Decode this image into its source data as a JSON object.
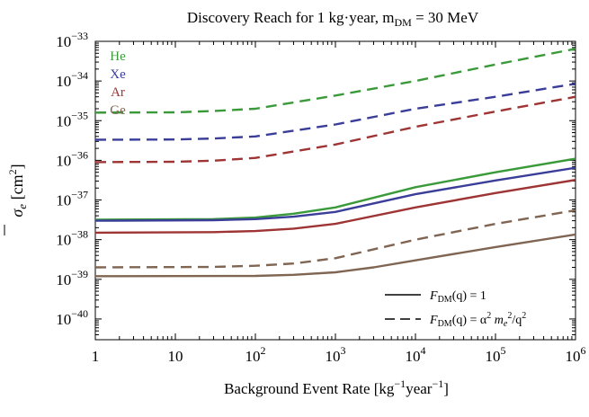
{
  "chart_data": {
    "type": "line",
    "title": "Discovery Reach for 1 kg·year,  m",
    "title_sub": "DM",
    "title_tail": " = 30 MeV",
    "xlabel": "Background Event Rate [kg",
    "xlabel_sup1": "−1",
    "xlabel_mid": "year",
    "xlabel_sup2": "−1",
    "xlabel_end": "]",
    "ylabel": "σ",
    "ylabel_sub": "e",
    "ylabel_unit": " [cm",
    "ylabel_unit_sup": "2",
    "ylabel_unit_end": "]",
    "x_scale": "log",
    "y_scale": "log",
    "xlim": [
      1,
      1000000
    ],
    "ylim": [
      3e-41,
      1e-33
    ],
    "x_ticks": [
      {
        "v": 1,
        "base": "1",
        "exp": ""
      },
      {
        "v": 10,
        "base": "10",
        "exp": ""
      },
      {
        "v": 100,
        "base": "10",
        "exp": "2"
      },
      {
        "v": 1000,
        "base": "10",
        "exp": "3"
      },
      {
        "v": 10000,
        "base": "10",
        "exp": "4"
      },
      {
        "v": 100000,
        "base": "10",
        "exp": "5"
      },
      {
        "v": 1000000,
        "base": "10",
        "exp": "6"
      }
    ],
    "y_ticks": [
      {
        "v": 1e-40,
        "base": "10",
        "exp": "−40"
      },
      {
        "v": 1e-39,
        "base": "10",
        "exp": "−39"
      },
      {
        "v": 1e-38,
        "base": "10",
        "exp": "−38"
      },
      {
        "v": 1e-37,
        "base": "10",
        "exp": "−37"
      },
      {
        "v": 1e-36,
        "base": "10",
        "exp": "−36"
      },
      {
        "v": 1e-35,
        "base": "10",
        "exp": "−35"
      },
      {
        "v": 1e-34,
        "base": "10",
        "exp": "−34"
      },
      {
        "v": 1e-33,
        "base": "10",
        "exp": "−33"
      }
    ],
    "grid": false,
    "legend_placement": "top-left",
    "legend": [
      {
        "name": "He",
        "color": "#3a9a3a"
      },
      {
        "name": "Xe",
        "color": "#3a3e99"
      },
      {
        "name": "Ar",
        "color": "#9e3434"
      },
      {
        "name": "Ge",
        "color": "#7f6552"
      }
    ],
    "style_legend": {
      "placement": "bottom-right",
      "solid": {
        "lhs": "F",
        "lhs_sub": "DM",
        "rest": "(q) = 1"
      },
      "dashed": {
        "lhs": "F",
        "lhs_sub": "DM",
        "rest": "(q) = α",
        "sup1": "2",
        "mid": " m",
        "sub2": "e",
        "sup2": "2",
        "tail": "/q",
        "sup3": "2"
      }
    },
    "series": [
      {
        "element": "He",
        "form_factor": "FDM=1",
        "style": "solid",
        "color": "#3a9a3a",
        "points": [
          [
            1,
            3.2e-38
          ],
          [
            30,
            3.3e-38
          ],
          [
            100,
            3.6e-38
          ],
          [
            300,
            4.5e-38
          ],
          [
            1000,
            6.5e-38
          ],
          [
            10000,
            2.1e-37
          ],
          [
            100000,
            5e-37
          ],
          [
            1000000,
            1.1e-36
          ]
        ]
      },
      {
        "element": "Xe",
        "form_factor": "FDM=1",
        "style": "solid",
        "color": "#3a3e99",
        "points": [
          [
            1,
            3e-38
          ],
          [
            30,
            3.1e-38
          ],
          [
            100,
            3.3e-38
          ],
          [
            300,
            3.8e-38
          ],
          [
            1000,
            5e-38
          ],
          [
            10000,
            1.4e-37
          ],
          [
            100000,
            3.1e-37
          ],
          [
            1000000,
            6.5e-37
          ]
        ]
      },
      {
        "element": "Ar",
        "form_factor": "FDM=1",
        "style": "solid",
        "color": "#9e3434",
        "points": [
          [
            1,
            1.5e-38
          ],
          [
            30,
            1.55e-38
          ],
          [
            100,
            1.65e-38
          ],
          [
            300,
            1.9e-38
          ],
          [
            1000,
            2.5e-38
          ],
          [
            10000,
            6.5e-38
          ],
          [
            100000,
            1.5e-37
          ],
          [
            1000000,
            3.2e-37
          ]
        ]
      },
      {
        "element": "Ge",
        "form_factor": "FDM=1",
        "style": "solid",
        "color": "#7f6552",
        "points": [
          [
            1,
            1.2e-39
          ],
          [
            100,
            1.22e-39
          ],
          [
            300,
            1.3e-39
          ],
          [
            1000,
            1.5e-39
          ],
          [
            3000,
            2e-39
          ],
          [
            10000,
            3e-39
          ],
          [
            100000,
            6.5e-39
          ],
          [
            1000000,
            1.35e-38
          ]
        ]
      },
      {
        "element": "He",
        "form_factor": "FDM=α²me²/q²",
        "style": "dashed",
        "color": "#3a9a3a",
        "points": [
          [
            1,
            1.6e-35
          ],
          [
            10,
            1.62e-35
          ],
          [
            30,
            1.75e-35
          ],
          [
            100,
            2e-35
          ],
          [
            1000,
            4.3e-35
          ],
          [
            10000,
            1e-34
          ],
          [
            100000,
            2.6e-34
          ],
          [
            1000000,
            6.5e-34
          ]
        ]
      },
      {
        "element": "Xe",
        "form_factor": "FDM=α²me²/q²",
        "style": "dashed",
        "color": "#3a3e99",
        "points": [
          [
            1,
            3.3e-36
          ],
          [
            10,
            3.35e-36
          ],
          [
            30,
            3.55e-36
          ],
          [
            100,
            4e-36
          ],
          [
            1000,
            8e-36
          ],
          [
            10000,
            2e-35
          ],
          [
            100000,
            4e-35
          ],
          [
            1000000,
            8.5e-35
          ]
        ]
      },
      {
        "element": "Ar",
        "form_factor": "FDM=α²me²/q²",
        "style": "dashed",
        "color": "#9e3434",
        "points": [
          [
            1,
            9e-37
          ],
          [
            10,
            9.2e-37
          ],
          [
            30,
            9.8e-37
          ],
          [
            100,
            1.15e-36
          ],
          [
            1000,
            2.5e-36
          ],
          [
            10000,
            7e-36
          ],
          [
            100000,
            1.7e-35
          ],
          [
            1000000,
            4e-35
          ]
        ]
      },
      {
        "element": "Ge",
        "form_factor": "FDM=α²me²/q²",
        "style": "dashed",
        "color": "#7f6552",
        "points": [
          [
            1,
            2e-39
          ],
          [
            30,
            2.05e-39
          ],
          [
            100,
            2.2e-39
          ],
          [
            300,
            2.5e-39
          ],
          [
            1000,
            3.4e-39
          ],
          [
            10000,
            1e-38
          ],
          [
            100000,
            2.5e-38
          ],
          [
            1000000,
            5.5e-38
          ]
        ]
      }
    ]
  }
}
